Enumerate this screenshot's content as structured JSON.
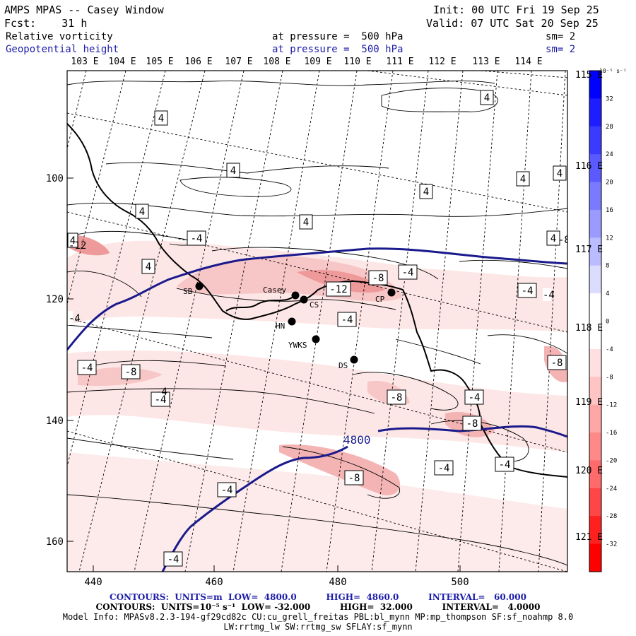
{
  "header": {
    "title": "AMPS MPAS -- Casey Window",
    "fcst": "Fcst:    31 h",
    "init": "Init: 00 UTC Fri 19 Sep 25",
    "valid": "Valid: 07 UTC Sat 20 Sep 25",
    "field1": "Relative vorticity",
    "field2": "Geopotential height",
    "pressure1": "at pressure =  500 hPa",
    "pressure2": "at pressure =  500 hPa",
    "sm1": "sm= 2",
    "sm2": "sm= 2"
  },
  "map": {
    "top_longitudes": [
      "103 E",
      "104 E",
      "105 E",
      "106 E",
      "107 E",
      "108 E",
      "109 E",
      "110 E",
      "111 E",
      "112 E",
      "113 E",
      "114 E"
    ],
    "right_longitudes": [
      "115 E",
      "116 E",
      "117 E",
      "118 E",
      "119 E",
      "120 E",
      "121 E"
    ],
    "x_ticks": [
      "440",
      "460",
      "480",
      "500"
    ],
    "y_ticks": [
      "100",
      "120",
      "140",
      "160"
    ],
    "height_contour_label": "4800",
    "stations": [
      {
        "name": "SB"
      },
      {
        "name": "Casey"
      },
      {
        "name": "CS"
      },
      {
        "name": "CP"
      },
      {
        "name": "HN"
      },
      {
        "name": "YWKS"
      },
      {
        "name": "DS"
      }
    ],
    "vort_labels": [
      "4",
      "4",
      "4",
      "4",
      "4",
      "4",
      "4",
      "4",
      "4",
      "4",
      "4",
      "-4",
      "-4",
      "-4",
      "-4",
      "-4",
      "-4",
      "-4",
      "-4",
      "-4",
      "-4",
      "-4",
      "-4",
      "-8",
      "-8",
      "-8",
      "-8",
      "-8",
      "-8",
      "-12",
      "-12",
      "-4",
      "-8",
      "-4"
    ],
    "colors": {
      "height_contour": "#1a1a8c",
      "coast": "#000000",
      "shade_light": "#fde4e4",
      "shade_mid": "#f7c4c4",
      "shade_strong": "#ef9a9a"
    }
  },
  "colorbar": {
    "unit": "10⁻⁵ s⁻¹",
    "labels": [
      "32",
      "28",
      "24",
      "20",
      "16",
      "12",
      "8",
      "4",
      "0",
      "-4",
      "-8",
      "-12",
      "-16",
      "-20",
      "-24",
      "-28",
      "-32"
    ],
    "colors": [
      "#0000ff",
      "#1d1dff",
      "#3b3bff",
      "#5a5aff",
      "#7a7aff",
      "#9a9aff",
      "#bbbbff",
      "#dcdcff",
      "#ffffff",
      "#ffffff",
      "#ffe0e0",
      "#ffc4c4",
      "#ffa6a6",
      "#ff8888",
      "#ff6a6a",
      "#ff4646",
      "#ff2020",
      "#ff0000"
    ]
  },
  "footer": {
    "contours1": "CONTOURS:  UNITS=m  LOW=  4800.0          HIGH=  4860.0          INTERVAL=   60.000",
    "contours2": "CONTOURS:  UNITS=10⁻⁵ s⁻¹  LOW= -32.000          HIGH=  32.000          INTERVAL=   4.0000",
    "model1": "Model Info: MPASv8.2.3-194-gf29cd82c CU:cu_grell_freitas PBL:bl_mynn MP:mp_thompson SF:sf_noahmp 8.0",
    "model2": "LW:rrtmg_lw SW:rrtmg_sw SFLAY:sf_mynn"
  }
}
